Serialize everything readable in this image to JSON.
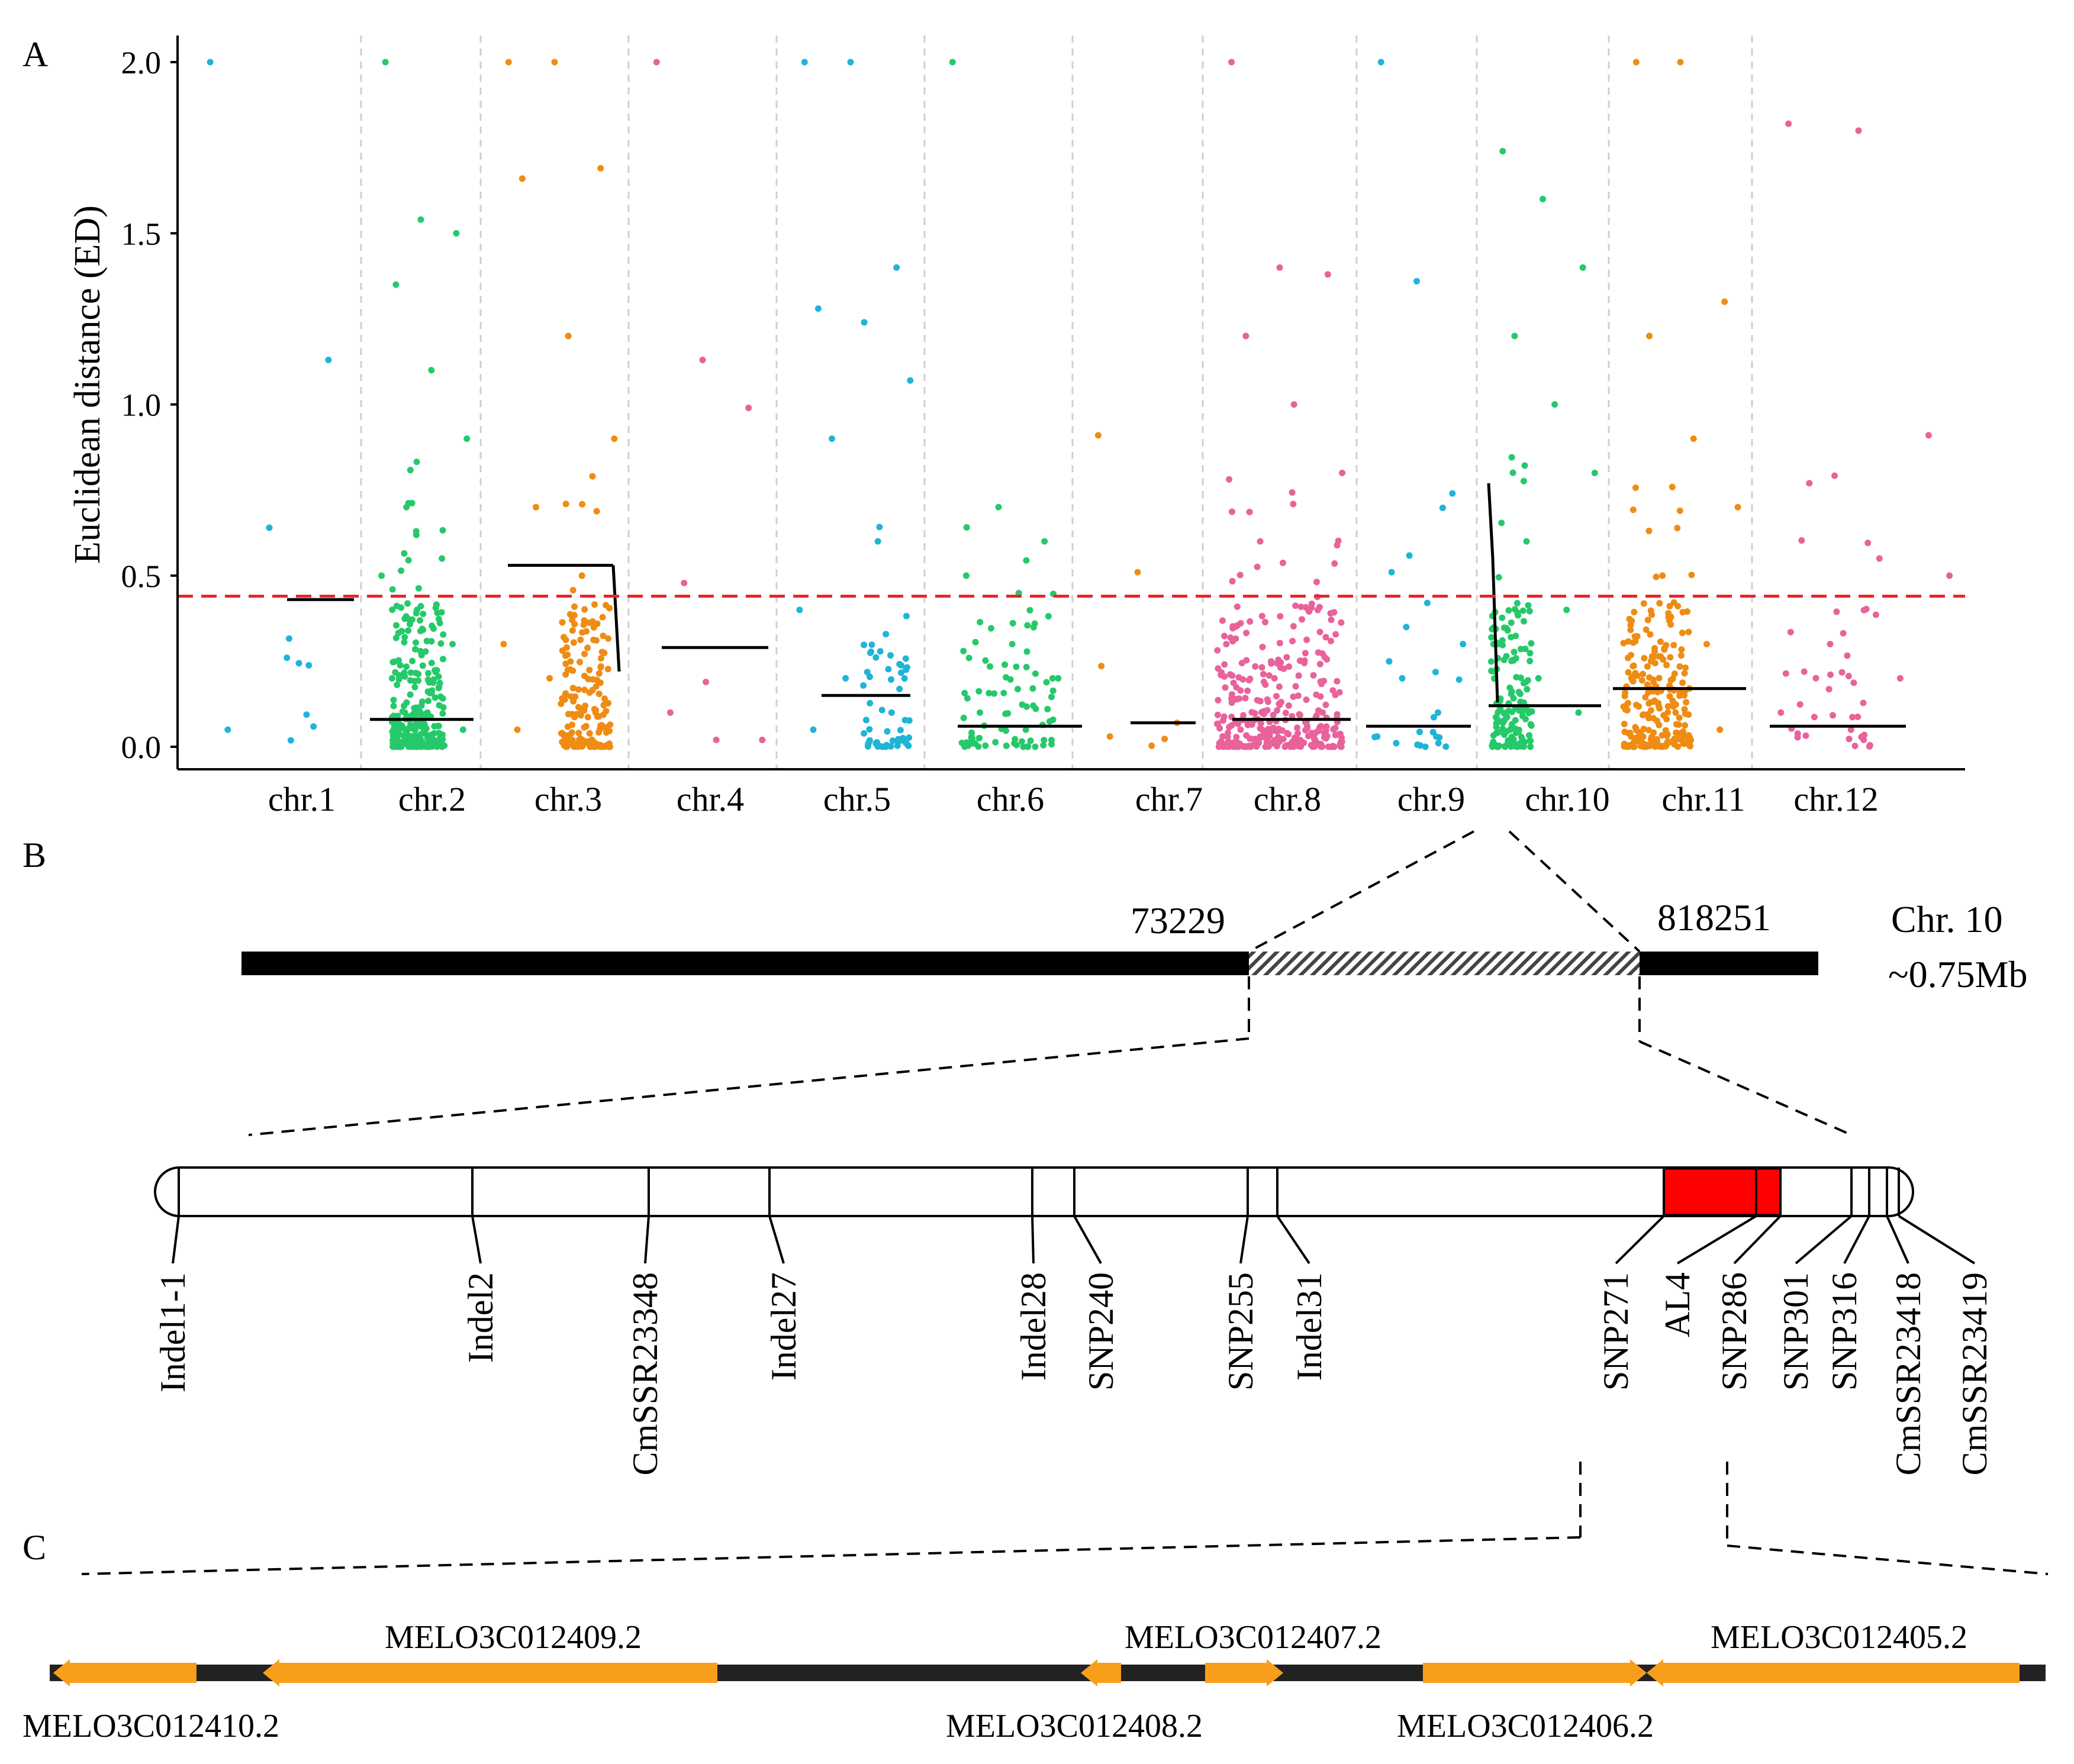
{
  "panels": {
    "a": "A",
    "b": "B",
    "c": "C"
  },
  "chart_data": {
    "type": "scatter",
    "title": "",
    "xlabel": "",
    "ylabel": "Euclidean distance (ED)",
    "ylim": [
      0,
      2.0
    ],
    "yticks": [
      "0.0",
      "0.5",
      "1.0",
      "1.5",
      "2.0"
    ],
    "threshold": 0.44,
    "threshold_color": "#e8272a",
    "grid": "vertical dashed chromosome separators",
    "colors": {
      "blue": "#1fb4d8",
      "green": "#26c96a",
      "orange": "#ee8c13",
      "pink": "#e8629c",
      "line": "#000000"
    },
    "chromosomes": [
      {
        "label": "chr.1",
        "color": "blue",
        "fit": 0.43,
        "points": [
          2.0,
          0.64,
          1.13,
          0.05,
          0.26
        ]
      },
      {
        "label": "chr.2",
        "color": "green",
        "fit": 0.08,
        "points": [
          2.0,
          1.54,
          1.5,
          1.35,
          1.1,
          0.9,
          0.7,
          0.55,
          0.5,
          0.4,
          0.3,
          0.2,
          0.1,
          0.05
        ]
      },
      {
        "label": "chr.3",
        "color": "orange",
        "fit": 0.53,
        "points": [
          2.0,
          2.0,
          1.69,
          1.66,
          1.2,
          0.9,
          0.7,
          0.5,
          0.3,
          0.2,
          0.1,
          0.05
        ]
      },
      {
        "label": "chr.4",
        "color": "pink",
        "fit": 0.29,
        "points": [
          2.0,
          1.13,
          0.99,
          0.1,
          0.02,
          0.02
        ]
      },
      {
        "label": "chr.5",
        "color": "blue",
        "fit": 0.15,
        "points": [
          2.0,
          2.0,
          1.4,
          1.28,
          1.24,
          1.07,
          0.9,
          0.6,
          0.4,
          0.2,
          0.1,
          0.05
        ]
      },
      {
        "label": "chr.6",
        "color": "green",
        "fit": 0.06,
        "points": [
          2.0,
          0.7,
          0.6,
          0.5,
          0.3,
          0.2,
          0.1,
          0.05
        ]
      },
      {
        "label": "chr.7",
        "color": "orange",
        "fit": 0.07,
        "points": [
          0.91,
          0.51,
          0.07,
          0.03
        ]
      },
      {
        "label": "chr.8",
        "color": "pink",
        "fit": 0.08,
        "points": [
          2.0,
          1.4,
          1.38,
          1.2,
          1.0,
          0.8,
          0.6,
          0.4,
          0.3,
          0.2,
          0.1,
          0.05
        ]
      },
      {
        "label": "chr.9",
        "color": "blue",
        "fit": 0.06,
        "points": [
          2.0,
          1.36,
          0.74,
          0.51,
          0.42,
          0.3,
          0.2,
          0.1,
          0.03
        ]
      },
      {
        "label": "chr.10",
        "color": "green",
        "fit": 0.12,
        "points": [
          1.74,
          1.6,
          1.4,
          1.2,
          1.0,
          0.8,
          0.6,
          0.4,
          0.3,
          0.2,
          0.1,
          0.05
        ]
      },
      {
        "label": "chr.11",
        "color": "orange",
        "fit": 0.17,
        "points": [
          2.0,
          2.0,
          1.3,
          1.2,
          0.9,
          0.7,
          0.5,
          0.3,
          0.2,
          0.1,
          0.05
        ]
      },
      {
        "label": "chr.12",
        "color": "pink",
        "fit": 0.06,
        "points": [
          1.82,
          1.8,
          0.91,
          0.77,
          0.55,
          0.5,
          0.3,
          0.2,
          0.1,
          0.05
        ]
      }
    ]
  },
  "panel_b": {
    "start_pos": "73229",
    "end_pos": "818251",
    "chr_name": "Chr. 10",
    "chr_size": "~0.75Mb",
    "markers": [
      "Indel1-1",
      "Indel2",
      "CmSSR23348",
      "Indel27",
      "Indel28",
      "SNP240",
      "SNP255",
      "Indel31",
      "SNP271",
      "AL4",
      "SNP286",
      "SNP301",
      "SNP316",
      "CmSSR23418",
      "CmSSR23419"
    ],
    "highlight_color": "#ff0000"
  },
  "panel_c": {
    "gene_color": "#f99e1a",
    "genes_top": [
      "MELO3C012409.2",
      "MELO3C012407.2",
      "MELO3C012405.2"
    ],
    "genes_bottom": [
      "MELO3C012410.2",
      "MELO3C012408.2",
      "MELO3C012406.2"
    ]
  }
}
